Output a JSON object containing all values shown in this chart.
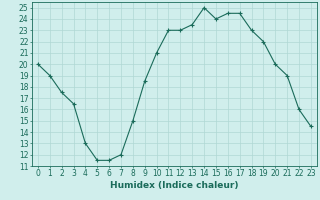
{
  "x": [
    0,
    1,
    2,
    3,
    4,
    5,
    6,
    7,
    8,
    9,
    10,
    11,
    12,
    13,
    14,
    15,
    16,
    17,
    18,
    19,
    20,
    21,
    22,
    23
  ],
  "y": [
    20,
    19,
    17.5,
    16.5,
    13,
    11.5,
    11.5,
    12,
    15,
    18.5,
    21,
    23,
    23,
    23.5,
    25,
    24,
    24.5,
    24.5,
    23,
    22,
    20,
    19,
    16,
    14.5
  ],
  "line_color": "#1a6b5a",
  "marker_color": "#1a6b5a",
  "bg_color": "#d0eeec",
  "grid_color": "#b0d8d4",
  "xlabel": "Humidex (Indice chaleur)",
  "xlim": [
    -0.5,
    23.5
  ],
  "ylim": [
    11,
    25.5
  ],
  "yticks": [
    11,
    12,
    13,
    14,
    15,
    16,
    17,
    18,
    19,
    20,
    21,
    22,
    23,
    24,
    25
  ],
  "xticks": [
    0,
    1,
    2,
    3,
    4,
    5,
    6,
    7,
    8,
    9,
    10,
    11,
    12,
    13,
    14,
    15,
    16,
    17,
    18,
    19,
    20,
    21,
    22,
    23
  ],
  "xtick_labels": [
    "0",
    "1",
    "2",
    "3",
    "4",
    "5",
    "6",
    "7",
    "8",
    "9",
    "10",
    "11",
    "12",
    "13",
    "14",
    "15",
    "16",
    "17",
    "18",
    "19",
    "20",
    "21",
    "22",
    "23"
  ],
  "tick_fontsize": 5.5,
  "xlabel_fontsize": 6.5
}
